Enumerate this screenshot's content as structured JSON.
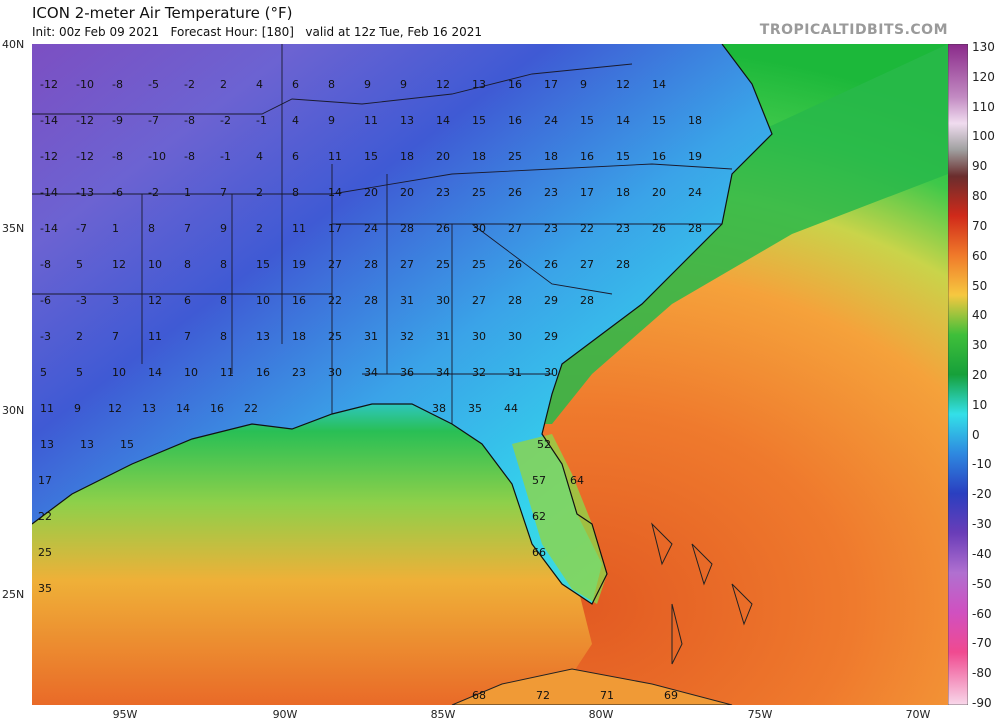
{
  "header": {
    "title": "ICON 2-meter Air Temperature (°F)",
    "subtitle": "Init: 00z Feb 09 2021   Forecast Hour: [180]   valid at 12z Tue, Feb 16 2021",
    "brand": "TROPICALTIDBITS.COM"
  },
  "map": {
    "lat_labels": [
      "40N",
      "35N",
      "30N",
      "25N"
    ],
    "lon_labels": [
      "95W",
      "90W",
      "85W",
      "80W",
      "75W",
      "70W"
    ],
    "colors": {
      "cold": "#7a3fb4",
      "cool": "#2f56c6",
      "freezing": "#33d2f0",
      "mild": "#1cbf3c",
      "warm": "#f08c32",
      "hot": "#e04a1f"
    },
    "station_values": [
      [
        "-12",
        "-10",
        "-8",
        "-5",
        "-2",
        "2",
        "4",
        "6",
        "8",
        "9",
        "9",
        "12",
        "13",
        "16",
        "17",
        "9",
        "12",
        "14"
      ],
      [
        "-14",
        "-12",
        "-9",
        "-7",
        "-8",
        "-2",
        "-1",
        "4",
        "9",
        "11",
        "13",
        "14",
        "15",
        "16",
        "24",
        "15",
        "14",
        "15",
        "18"
      ],
      [
        "-12",
        "-12",
        "-8",
        "-10",
        "-8",
        "-1",
        "4",
        "6",
        "11",
        "15",
        "18",
        "20",
        "18",
        "25",
        "18",
        "16",
        "15",
        "16",
        "19"
      ],
      [
        "-14",
        "-13",
        "-6",
        "-2",
        "1",
        "7",
        "2",
        "8",
        "14",
        "20",
        "20",
        "23",
        "25",
        "26",
        "23",
        "17",
        "18",
        "20",
        "24"
      ],
      [
        "-14",
        "-7",
        "1",
        "8",
        "7",
        "9",
        "2",
        "11",
        "17",
        "24",
        "28",
        "26",
        "30",
        "27",
        "23",
        "22",
        "23",
        "26",
        "28"
      ],
      [
        "-8",
        "5",
        "12",
        "10",
        "8",
        "8",
        "15",
        "19",
        "27",
        "28",
        "27",
        "25",
        "25",
        "26",
        "26",
        "27",
        "28"
      ],
      [
        "-6",
        "-3",
        "3",
        "12",
        "6",
        "8",
        "10",
        "16",
        "22",
        "28",
        "31",
        "30",
        "27",
        "28",
        "29",
        "28"
      ],
      [
        "-3",
        "2",
        "7",
        "11",
        "7",
        "8",
        "13",
        "18",
        "25",
        "31",
        "32",
        "31",
        "30",
        "30",
        "29"
      ],
      [
        "5",
        "5",
        "10",
        "14",
        "10",
        "11",
        "16",
        "23",
        "30",
        "34",
        "36",
        "34",
        "32",
        "31",
        "30"
      ],
      [
        "11",
        "9",
        "12",
        "13",
        "14",
        "16",
        "22",
        "38",
        "35",
        "44"
      ],
      [
        "13",
        "13",
        "15",
        "52"
      ],
      [
        "17",
        "57",
        "64"
      ],
      [
        "22",
        "62"
      ],
      [
        "25",
        "66"
      ],
      [
        "35"
      ],
      [
        "68",
        "72",
        "71",
        "69"
      ]
    ]
  },
  "colorbar": {
    "labels": [
      "130",
      "120",
      "110",
      "100",
      "90",
      "80",
      "70",
      "60",
      "50",
      "40",
      "30",
      "20",
      "10",
      "0",
      "-10",
      "-20",
      "-30",
      "-40",
      "-50",
      "-60",
      "-70",
      "-80",
      "-90"
    ]
  }
}
